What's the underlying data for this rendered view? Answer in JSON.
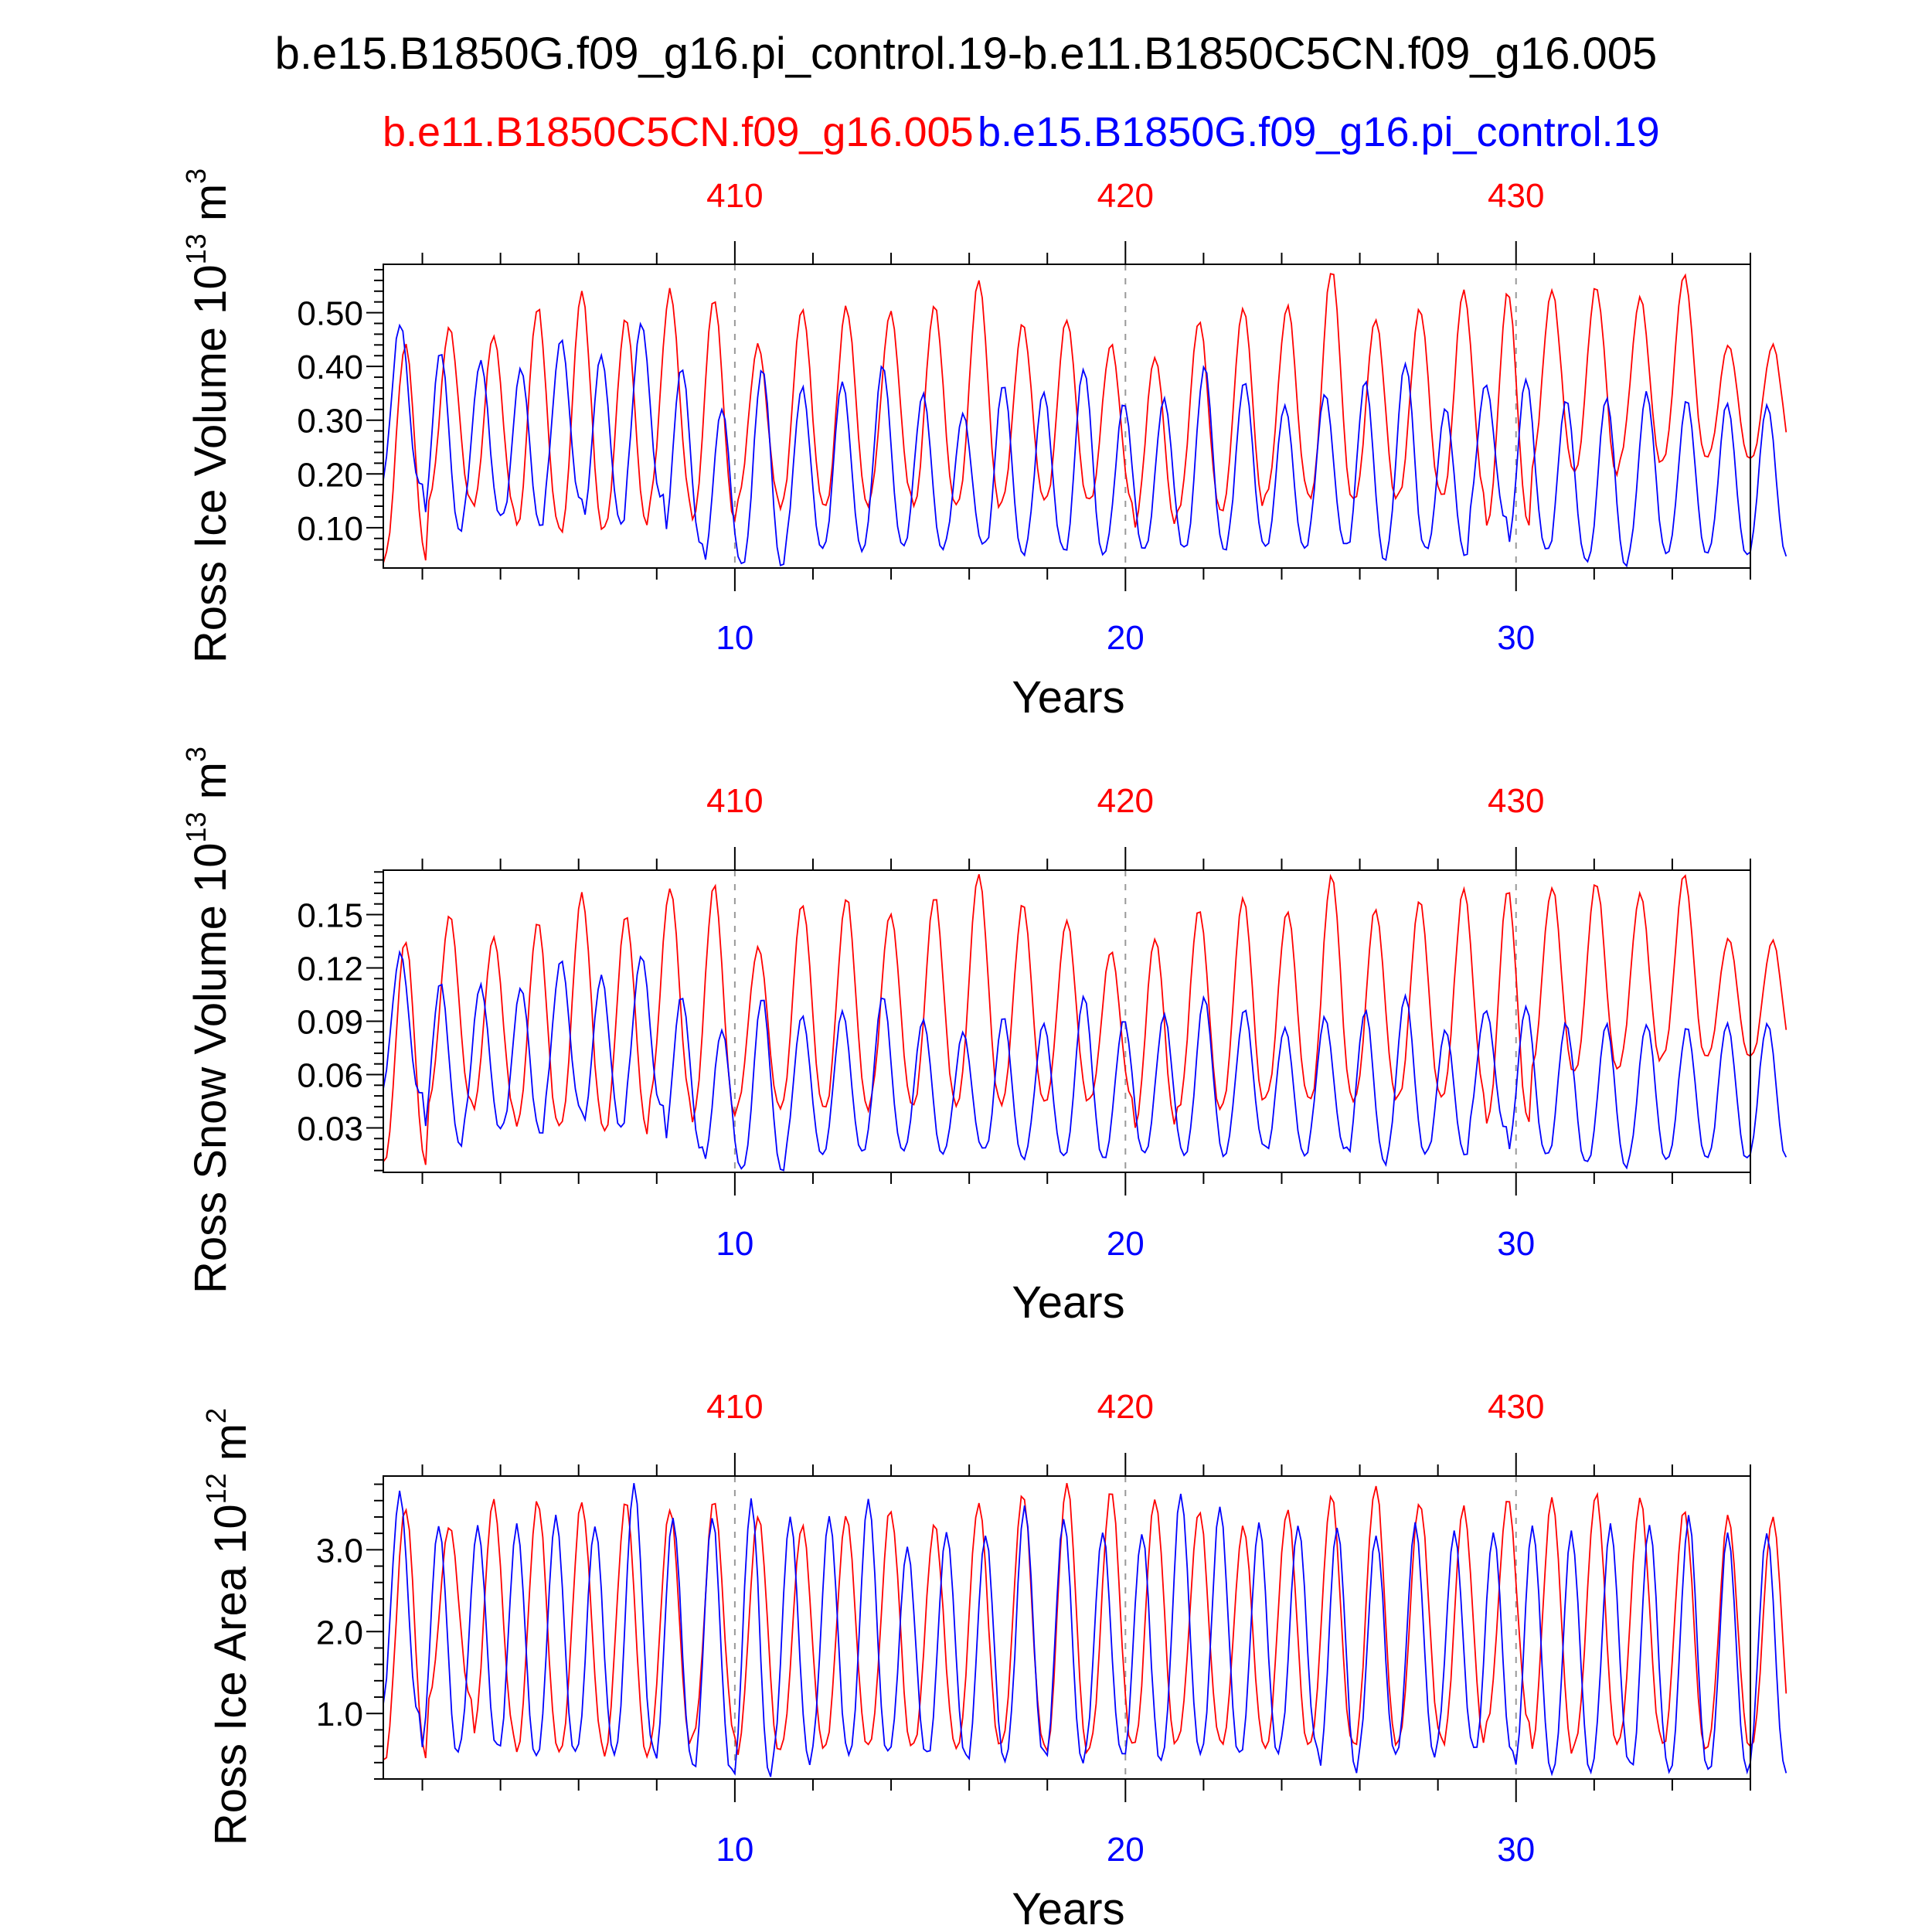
{
  "title": "b.e15.B1850G.f09_g16.pi_control.19-b.e11.B1850C5CN.f09_g16.005",
  "legend": {
    "red_label": "b.e11.B1850C5CN.f09_g16.005",
    "blue_label": "b.e15.B1850G.f09_g16.pi_control.19"
  },
  "colors": {
    "red": "#ff0000",
    "blue": "#0000ff",
    "axis": "#000000",
    "refline": "#999999"
  },
  "chart_data": [
    {
      "type": "line",
      "ylabel": "Ross Ice Volume 10^13 m^3",
      "ylabel_base": "Ross Ice Volume 10",
      "ylabel_exp": "13",
      "ylabel_unit": "m",
      "ylabel_unit_exp": "3",
      "xlabel": "Years",
      "xlim": [
        1,
        36
      ],
      "ylim": [
        0.025,
        0.59
      ],
      "yticks": [
        0.1,
        0.2,
        0.3,
        0.4,
        0.5
      ],
      "ytick_labels": [
        "0.10",
        "0.20",
        "0.30",
        "0.40",
        "0.50"
      ],
      "bottom_xticks": [
        10,
        20,
        30
      ],
      "bottom_xtick_labels": [
        "10",
        "20",
        "30"
      ],
      "top_xtick_labels": [
        "410",
        "420",
        "430"
      ],
      "reference_lines_x": [
        10,
        20,
        30
      ],
      "series": [
        {
          "name": "b.e11.B1850C5CN.f09_g16.005",
          "color": "#ff0000",
          "maxima": [
            0.44,
            0.47,
            0.46,
            0.51,
            0.54,
            0.49,
            0.54,
            0.53,
            0.44,
            0.51,
            0.51,
            0.5,
            0.51,
            0.56,
            0.48,
            0.49,
            0.44,
            0.42,
            0.49,
            0.51,
            0.51,
            0.58,
            0.49,
            0.51,
            0.54,
            0.54,
            0.54,
            0.55,
            0.53,
            0.57,
            0.44
          ],
          "minima": [
            0.04,
            0.15,
            0.13,
            0.1,
            0.09,
            0.1,
            0.15,
            0.11,
            0.15,
            0.14,
            0.14,
            0.16,
            0.14,
            0.14,
            0.15,
            0.15,
            0.15,
            0.1,
            0.13,
            0.13,
            0.16,
            0.15,
            0.15,
            0.16,
            0.16,
            0.1,
            0.21,
            0.2,
            0.22,
            0.23,
            0.23
          ]
        },
        {
          "name": "b.e15.B1850G.f09_g16.pi_control.19",
          "color": "#0000ff",
          "maxima": [
            0.48,
            0.43,
            0.41,
            0.4,
            0.45,
            0.42,
            0.48,
            0.4,
            0.32,
            0.4,
            0.36,
            0.37,
            0.4,
            0.35,
            0.31,
            0.37,
            0.35,
            0.4,
            0.33,
            0.34,
            0.4,
            0.37,
            0.33,
            0.35,
            0.37,
            0.41,
            0.32,
            0.37,
            0.38,
            0.34,
            0.34,
            0.35,
            0.34,
            0.33
          ],
          "minima": [
            0.18,
            0.09,
            0.12,
            0.1,
            0.15,
            0.11,
            0.16,
            0.07,
            0.03,
            0.03,
            0.06,
            0.06,
            0.07,
            0.06,
            0.07,
            0.05,
            0.06,
            0.05,
            0.06,
            0.06,
            0.06,
            0.07,
            0.06,
            0.07,
            0.04,
            0.06,
            0.05,
            0.12,
            0.06,
            0.04,
            0.03,
            0.05,
            0.05
          ]
        }
      ]
    },
    {
      "type": "line",
      "ylabel": "Ross Snow Volume 10^13 m^3",
      "ylabel_base": "Ross Snow Volume 10",
      "ylabel_exp": "13",
      "ylabel_unit": "m",
      "ylabel_unit_exp": "3",
      "xlabel": "Years",
      "xlim": [
        1,
        36
      ],
      "ylim": [
        0.005,
        0.175
      ],
      "yticks": [
        0.03,
        0.06,
        0.09,
        0.12,
        0.15
      ],
      "ytick_labels": [
        "0.03",
        "0.06",
        "0.09",
        "0.12",
        "0.15"
      ],
      "bottom_xticks": [
        10,
        20,
        30
      ],
      "bottom_xtick_labels": [
        "10",
        "20",
        "30"
      ],
      "top_xtick_labels": [
        "410",
        "420",
        "430"
      ],
      "reference_lines_x": [
        10,
        20,
        30
      ],
      "series": [
        {
          "name": "b.e11.B1850C5CN.f09_g16.005",
          "color": "#ff0000",
          "maxima": [
            0.135,
            0.149,
            0.137,
            0.146,
            0.162,
            0.15,
            0.165,
            0.166,
            0.132,
            0.156,
            0.16,
            0.152,
            0.16,
            0.172,
            0.155,
            0.146,
            0.13,
            0.136,
            0.154,
            0.16,
            0.152,
            0.172,
            0.153,
            0.157,
            0.164,
            0.163,
            0.166,
            0.168,
            0.162,
            0.172,
            0.136
          ],
          "minima": [
            0.01,
            0.045,
            0.04,
            0.03,
            0.032,
            0.028,
            0.046,
            0.035,
            0.044,
            0.041,
            0.041,
            0.045,
            0.043,
            0.046,
            0.044,
            0.045,
            0.046,
            0.03,
            0.04,
            0.042,
            0.047,
            0.045,
            0.046,
            0.047,
            0.048,
            0.032,
            0.063,
            0.062,
            0.065,
            0.07,
            0.07
          ]
        },
        {
          "name": "b.e15.B1850G.f09_g16.pi_control.19",
          "color": "#0000ff",
          "maxima": [
            0.128,
            0.112,
            0.11,
            0.11,
            0.125,
            0.115,
            0.126,
            0.104,
            0.085,
            0.104,
            0.093,
            0.096,
            0.105,
            0.091,
            0.083,
            0.093,
            0.088,
            0.104,
            0.091,
            0.093,
            0.103,
            0.097,
            0.087,
            0.092,
            0.096,
            0.104,
            0.085,
            0.097,
            0.099,
            0.089,
            0.088,
            0.089,
            0.087,
            0.089
          ],
          "minima": [
            0.05,
            0.021,
            0.03,
            0.027,
            0.04,
            0.03,
            0.043,
            0.018,
            0.008,
            0.007,
            0.016,
            0.016,
            0.018,
            0.016,
            0.018,
            0.013,
            0.015,
            0.013,
            0.016,
            0.015,
            0.015,
            0.019,
            0.015,
            0.018,
            0.01,
            0.016,
            0.014,
            0.03,
            0.015,
            0.01,
            0.008,
            0.012,
            0.013
          ]
        }
      ]
    },
    {
      "type": "line",
      "ylabel": "Ross Ice Area 10^12 m^2",
      "ylabel_base": "Ross Ice Area 10",
      "ylabel_exp": "12",
      "ylabel_unit": "m",
      "ylabel_unit_exp": "2",
      "xlabel": "Years",
      "xlim": [
        1,
        36
      ],
      "ylim": [
        0.2,
        3.9
      ],
      "yticks": [
        1.0,
        2.0,
        3.0
      ],
      "ytick_labels": [
        "1.0",
        "2.0",
        "3.0"
      ],
      "bottom_xticks": [
        10,
        20,
        30
      ],
      "bottom_xtick_labels": [
        "10",
        "20",
        "30"
      ],
      "top_xtick_labels": [
        "410",
        "420",
        "430"
      ],
      "reference_lines_x": [
        10,
        20,
        30
      ],
      "series": [
        {
          "name": "b.e11.B1850C5CN.f09_g16.005",
          "color": "#ff0000",
          "maxima": [
            3.5,
            3.3,
            3.6,
            3.6,
            3.6,
            3.6,
            3.5,
            3.6,
            3.4,
            3.3,
            3.4,
            3.5,
            3.3,
            3.6,
            3.7,
            3.8,
            3.7,
            3.6,
            3.5,
            3.3,
            3.5,
            3.7,
            3.8,
            3.6,
            3.5,
            3.6,
            3.6,
            3.7,
            3.6,
            3.5,
            3.4
          ],
          "minima": [
            0.4,
            1.2,
            0.7,
            0.5,
            0.6,
            0.5,
            0.6,
            0.7,
            0.5,
            0.6,
            0.6,
            0.6,
            0.6,
            0.6,
            0.6,
            0.5,
            0.6,
            0.6,
            0.7,
            0.6,
            0.6,
            0.6,
            0.6,
            0.7,
            0.6,
            0.9,
            0.5,
            0.6,
            0.7,
            0.6,
            0.6
          ]
        },
        {
          "name": "b.e15.B1850G.f09_g16.pi_control.19",
          "color": "#0000ff",
          "maxima": [
            3.7,
            3.3,
            3.3,
            3.3,
            3.4,
            3.3,
            3.8,
            3.4,
            3.4,
            3.6,
            3.4,
            3.4,
            3.6,
            3.0,
            3.2,
            3.2,
            3.5,
            3.4,
            3.2,
            3.2,
            3.7,
            3.5,
            3.3,
            3.3,
            3.3,
            3.2,
            3.3,
            3.2,
            3.2,
            3.3,
            3.2,
            3.3,
            3.3,
            3.4,
            3.2
          ],
          "minima": [
            1.0,
            0.5,
            0.6,
            0.5,
            0.5,
            0.5,
            0.6,
            0.4,
            0.3,
            0.2,
            0.4,
            0.5,
            0.5,
            0.5,
            0.5,
            0.4,
            0.5,
            0.4,
            0.5,
            0.4,
            0.5,
            0.5,
            0.5,
            0.6,
            0.3,
            0.5,
            0.5,
            0.6,
            0.5,
            0.3,
            0.3,
            0.4,
            0.3,
            0.3
          ]
        }
      ]
    }
  ]
}
